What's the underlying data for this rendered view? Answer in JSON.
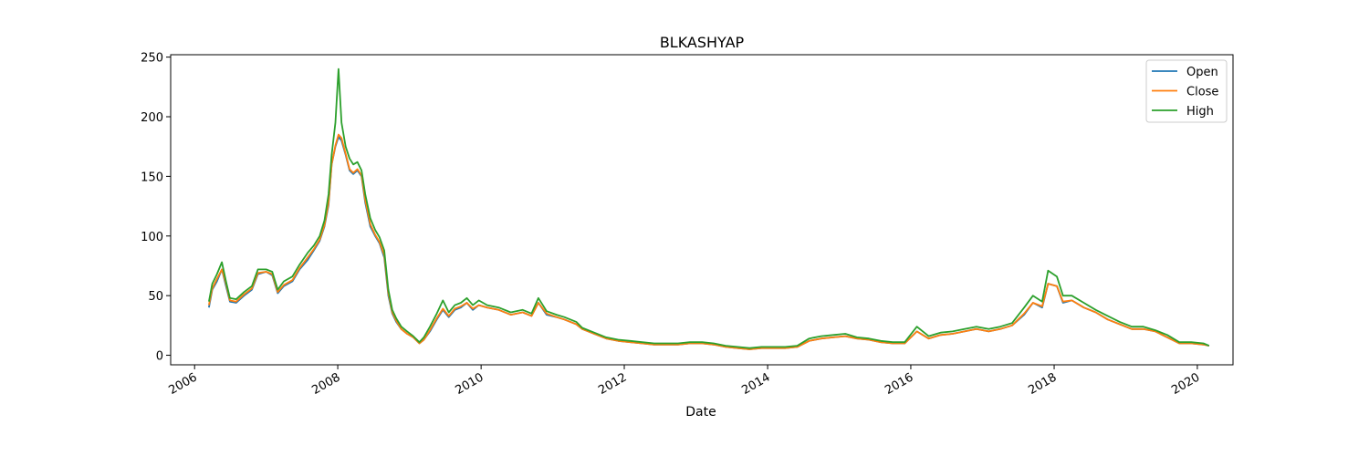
{
  "chart_data": {
    "type": "line",
    "title": "BLKASHYAP",
    "xlabel": "Date",
    "ylabel": "",
    "x_ticks": [
      "2006",
      "2008",
      "2010",
      "2012",
      "2014",
      "2016",
      "2018",
      "2020"
    ],
    "y_ticks": [
      "0",
      "50",
      "100",
      "150",
      "200",
      "250"
    ],
    "xlim": [
      "2005-09-01",
      "2020-07-01"
    ],
    "ylim": [
      -8,
      252
    ],
    "legend_position": "top-right",
    "grid": false,
    "x": [
      "2006-03-15",
      "2006-04-01",
      "2006-04-25",
      "2006-05-20",
      "2006-06-10",
      "2006-06-30",
      "2006-08-01",
      "2006-09-10",
      "2006-10-20",
      "2006-11-20",
      "2007-01-01",
      "2007-02-01",
      "2007-03-01",
      "2007-04-01",
      "2007-05-15",
      "2007-06-20",
      "2007-08-01",
      "2007-09-01",
      "2007-10-01",
      "2007-10-25",
      "2007-11-15",
      "2007-12-01",
      "2007-12-20",
      "2008-01-05",
      "2008-01-20",
      "2008-02-10",
      "2008-03-01",
      "2008-03-20",
      "2008-04-10",
      "2008-05-01",
      "2008-05-20",
      "2008-06-15",
      "2008-07-10",
      "2008-08-01",
      "2008-08-25",
      "2008-09-15",
      "2008-10-05",
      "2008-10-25",
      "2008-11-20",
      "2008-12-20",
      "2009-01-20",
      "2009-02-20",
      "2009-03-15",
      "2009-04-15",
      "2009-05-20",
      "2009-06-20",
      "2009-07-20",
      "2009-08-20",
      "2009-09-20",
      "2009-10-20",
      "2009-11-20",
      "2009-12-20",
      "2010-02-01",
      "2010-04-01",
      "2010-06-01",
      "2010-08-01",
      "2010-09-15",
      "2010-10-20",
      "2010-12-01",
      "2011-01-20",
      "2011-03-01",
      "2011-05-01",
      "2011-06-01",
      "2011-08-01",
      "2011-10-01",
      "2011-12-01",
      "2012-02-01",
      "2012-04-01",
      "2012-06-01",
      "2012-08-01",
      "2012-10-01",
      "2012-12-01",
      "2013-02-01",
      "2013-04-01",
      "2013-06-01",
      "2013-08-01",
      "2013-10-01",
      "2013-12-01",
      "2014-02-01",
      "2014-04-01",
      "2014-06-01",
      "2014-08-01",
      "2014-10-01",
      "2014-12-01",
      "2015-02-01",
      "2015-04-01",
      "2015-06-01",
      "2015-08-01",
      "2015-10-01",
      "2015-12-01",
      "2016-02-01",
      "2016-04-01",
      "2016-06-01",
      "2016-08-01",
      "2016-10-01",
      "2016-12-01",
      "2017-02-01",
      "2017-04-01",
      "2017-06-01",
      "2017-08-01",
      "2017-09-15",
      "2017-11-01",
      "2017-12-01",
      "2018-01-15",
      "2018-02-15",
      "2018-04-01",
      "2018-06-01",
      "2018-08-01",
      "2018-10-01",
      "2018-12-01",
      "2019-02-01",
      "2019-04-01",
      "2019-06-01",
      "2019-08-01",
      "2019-10-01",
      "2019-12-01",
      "2020-02-01",
      "2020-03-01"
    ],
    "series": [
      {
        "name": "Open",
        "color": "#1f77b4",
        "values": [
          40,
          55,
          62,
          72,
          58,
          45,
          44,
          50,
          55,
          68,
          70,
          67,
          52,
          58,
          62,
          72,
          80,
          88,
          96,
          108,
          126,
          160,
          175,
          183,
          180,
          168,
          155,
          152,
          155,
          150,
          128,
          108,
          100,
          94,
          82,
          50,
          35,
          28,
          22,
          18,
          15,
          10,
          13,
          20,
          30,
          38,
          32,
          38,
          40,
          44,
          38,
          42,
          40,
          38,
          34,
          36,
          33,
          44,
          34,
          32,
          30,
          26,
          22,
          18,
          14,
          12,
          11,
          10,
          9,
          9,
          9,
          10,
          10,
          9,
          7,
          6,
          5,
          6,
          6,
          6,
          7,
          12,
          14,
          15,
          16,
          14,
          13,
          11,
          10,
          10,
          20,
          14,
          17,
          18,
          20,
          22,
          20,
          22,
          25,
          34,
          44,
          40,
          60,
          58,
          44,
          46,
          40,
          36,
          30,
          26,
          22,
          22,
          20,
          15,
          10,
          10,
          9,
          8
        ]
      },
      {
        "name": "Close",
        "color": "#ff7f0e",
        "values": [
          42,
          56,
          64,
          72,
          60,
          46,
          45,
          51,
          56,
          69,
          70,
          68,
          53,
          59,
          63,
          73,
          82,
          89,
          97,
          109,
          128,
          160,
          176,
          185,
          182,
          169,
          156,
          153,
          156,
          151,
          130,
          110,
          101,
          95,
          84,
          52,
          36,
          29,
          22,
          18,
          15,
          10,
          13,
          21,
          31,
          39,
          33,
          39,
          41,
          44,
          39,
          42,
          40,
          38,
          34,
          36,
          33,
          44,
          35,
          32,
          30,
          26,
          22,
          18,
          14,
          12,
          11,
          10,
          9,
          9,
          9,
          10,
          10,
          9,
          7,
          6,
          5,
          6,
          6,
          6,
          7,
          12,
          14,
          15,
          16,
          14,
          13,
          11,
          10,
          10,
          20,
          14,
          17,
          18,
          20,
          22,
          20,
          22,
          25,
          35,
          44,
          41,
          60,
          58,
          45,
          46,
          40,
          36,
          30,
          26,
          22,
          22,
          20,
          15,
          10,
          10,
          9,
          8
        ]
      },
      {
        "name": "High",
        "color": "#2ca02c",
        "values": [
          45,
          60,
          68,
          78,
          62,
          48,
          47,
          53,
          58,
          72,
          72,
          70,
          55,
          62,
          66,
          76,
          86,
          92,
          100,
          113,
          135,
          168,
          195,
          240,
          195,
          175,
          165,
          160,
          162,
          155,
          135,
          115,
          105,
          99,
          88,
          55,
          38,
          31,
          24,
          20,
          16,
          11,
          15,
          24,
          35,
          46,
          36,
          42,
          44,
          48,
          42,
          46,
          42,
          40,
          36,
          38,
          35,
          48,
          37,
          34,
          32,
          28,
          23,
          19,
          15,
          13,
          12,
          11,
          10,
          10,
          10,
          11,
          11,
          10,
          8,
          7,
          6,
          7,
          7,
          7,
          8,
          14,
          16,
          17,
          18,
          15,
          14,
          12,
          11,
          11,
          24,
          16,
          19,
          20,
          22,
          24,
          22,
          24,
          27,
          40,
          50,
          45,
          71,
          66,
          50,
          50,
          44,
          38,
          33,
          28,
          24,
          24,
          21,
          17,
          11,
          11,
          10,
          8
        ]
      }
    ]
  }
}
